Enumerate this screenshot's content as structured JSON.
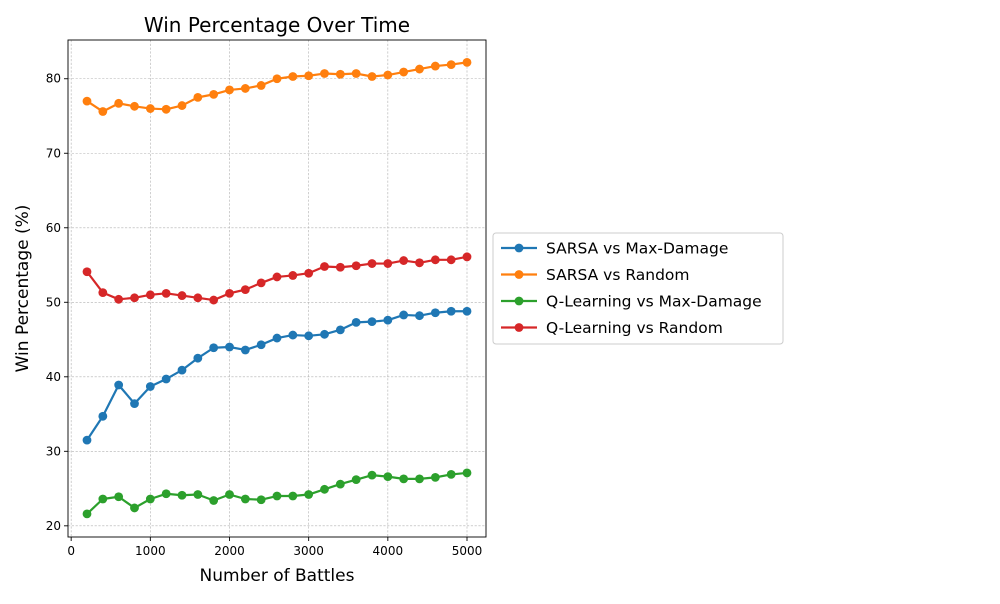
{
  "chart_data": {
    "type": "line",
    "title": "Win Percentage Over Time",
    "xlabel": "Number of Battles",
    "ylabel": "Win Percentage (%)",
    "x": [
      200,
      400,
      600,
      800,
      1000,
      1200,
      1400,
      1600,
      1800,
      2000,
      2200,
      2400,
      2600,
      2800,
      3000,
      3200,
      3400,
      3600,
      3800,
      4000,
      4200,
      4400,
      4600,
      4800,
      5000
    ],
    "xlim": [
      -40,
      5240
    ],
    "ylim": [
      18.5,
      85.2
    ],
    "xticks": [
      0,
      1000,
      2000,
      3000,
      4000,
      5000
    ],
    "yticks": [
      20,
      30,
      40,
      50,
      60,
      70,
      80
    ],
    "grid": true,
    "legend_position": "outside-right",
    "series": [
      {
        "name": "SARSA vs Max-Damage",
        "color": "#1f77b4",
        "values": [
          31.5,
          34.7,
          38.9,
          36.4,
          38.7,
          39.7,
          40.9,
          42.5,
          43.9,
          44.0,
          43.6,
          44.3,
          45.2,
          45.6,
          45.5,
          45.7,
          46.3,
          47.3,
          47.4,
          47.6,
          48.3,
          48.2,
          48.6,
          48.8,
          48.8
        ]
      },
      {
        "name": "SARSA vs Random",
        "color": "#ff7f0e",
        "values": [
          77.0,
          75.6,
          76.7,
          76.3,
          76.0,
          75.9,
          76.4,
          77.5,
          77.9,
          78.5,
          78.7,
          79.1,
          80.0,
          80.3,
          80.4,
          80.7,
          80.6,
          80.7,
          80.3,
          80.5,
          80.9,
          81.3,
          81.7,
          81.9,
          82.2
        ]
      },
      {
        "name": "Q-Learning vs Max-Damage",
        "color": "#2ca02c",
        "values": [
          21.6,
          23.6,
          23.9,
          22.4,
          23.6,
          24.3,
          24.1,
          24.2,
          23.4,
          24.2,
          23.6,
          23.5,
          24.0,
          24.0,
          24.2,
          24.9,
          25.6,
          26.2,
          26.8,
          26.6,
          26.3,
          26.3,
          26.5,
          26.9,
          27.1
        ]
      },
      {
        "name": "Q-Learning vs Random",
        "color": "#d62728",
        "values": [
          54.1,
          51.3,
          50.4,
          50.6,
          51.0,
          51.2,
          50.9,
          50.6,
          50.3,
          51.2,
          51.7,
          52.6,
          53.4,
          53.6,
          53.9,
          54.8,
          54.7,
          54.9,
          55.2,
          55.2,
          55.6,
          55.3,
          55.7,
          55.7,
          56.1
        ]
      }
    ]
  }
}
